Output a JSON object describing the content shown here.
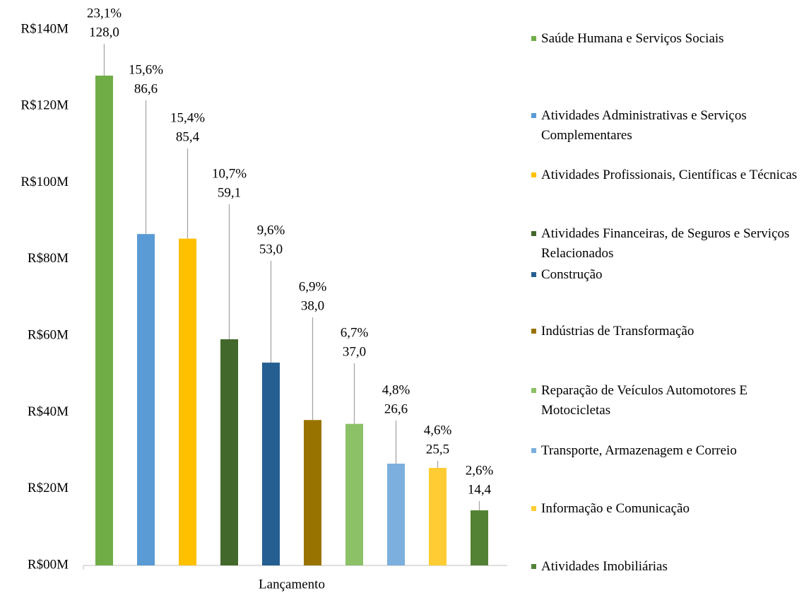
{
  "chart_data": {
    "type": "bar",
    "x_label": "Lançamento",
    "categories": [
      "Lançamento"
    ],
    "ylim": [
      0,
      140
    ],
    "yticks": [
      {
        "value": 0,
        "label": "R$00M"
      },
      {
        "value": 20,
        "label": "R$20M"
      },
      {
        "value": 40,
        "label": "R$40M"
      },
      {
        "value": 60,
        "label": "R$60M"
      },
      {
        "value": 80,
        "label": "R$80M"
      },
      {
        "value": 100,
        "label": "R$100M"
      },
      {
        "value": 120,
        "label": "R$120M"
      },
      {
        "value": 140,
        "label": "R$140M"
      }
    ],
    "legend": "right",
    "series": [
      {
        "name": "Saúde Humana e Serviços Sociais",
        "color": "#70ad47",
        "values": [
          128.0
        ],
        "value_labels": [
          "128,0"
        ],
        "share": 23.1,
        "share_label": "23,1%"
      },
      {
        "name": "Atividades Administrativas e Serviços Complementares",
        "color": "#5b9bd5",
        "values": [
          86.6
        ],
        "value_labels": [
          "86,6"
        ],
        "share": 15.6,
        "share_label": "15,6%"
      },
      {
        "name": "Atividades Profissionais, Científicas e Técnicas",
        "color": "#ffc000",
        "values": [
          85.4
        ],
        "value_labels": [
          "85,4"
        ],
        "share": 15.4,
        "share_label": "15,4%"
      },
      {
        "name": "Atividades Financeiras, de Seguros e Serviços Relacionados",
        "color": "#43682b",
        "values": [
          59.1
        ],
        "value_labels": [
          "59,1"
        ],
        "share": 10.7,
        "share_label": "10,7%"
      },
      {
        "name": "Construção",
        "color": "#255e91",
        "values": [
          53.0
        ],
        "value_labels": [
          "53,0"
        ],
        "share": 9.6,
        "share_label": "9,6%"
      },
      {
        "name": "Indústrias de Transformação",
        "color": "#997300",
        "values": [
          38.0
        ],
        "value_labels": [
          "38,0"
        ],
        "share": 6.9,
        "share_label": "6,9%"
      },
      {
        "name": "Reparação de Veículos Automotores E Motocicletas",
        "color": "#8cc168",
        "values": [
          37.0
        ],
        "value_labels": [
          "37,0"
        ],
        "share": 6.7,
        "share_label": "6,7%"
      },
      {
        "name": "Transporte, Armazenagem e Correio",
        "color": "#7cafdd",
        "values": [
          26.6
        ],
        "value_labels": [
          "26,6"
        ],
        "share": 4.8,
        "share_label": "4,8%"
      },
      {
        "name": "Informação e Comunicação",
        "color": "#ffcd33",
        "values": [
          25.5
        ],
        "value_labels": [
          "25,5"
        ],
        "share": 4.6,
        "share_label": "4,6%"
      },
      {
        "name": "Atividades Imobiliárias",
        "color": "#548235",
        "values": [
          14.4
        ],
        "value_labels": [
          "14,4"
        ],
        "share": 2.6,
        "share_label": "2,6%"
      }
    ]
  }
}
